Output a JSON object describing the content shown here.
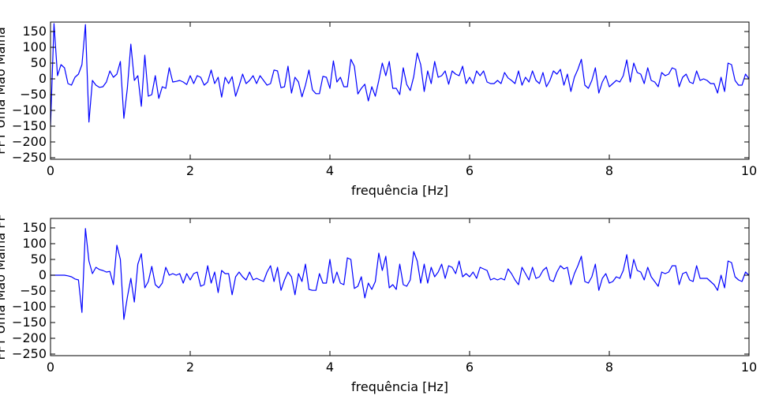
{
  "chart_data": [
    {
      "type": "line",
      "xlabel": "frequência [Hz]",
      "ylabel": "FFT Uma Mao Malha",
      "xlim": [
        0,
        10
      ],
      "ylim": [
        -250,
        180
      ],
      "xticks": [
        "0",
        "2",
        "4",
        "6",
        "8",
        "10"
      ],
      "yticks": [
        "150",
        "100",
        "50",
        "0",
        "−50",
        "−100",
        "−150",
        "−200",
        "−250"
      ],
      "grid": false,
      "color": "#0000ff",
      "series": [
        {
          "x": [
            0.0,
            0.05,
            0.1,
            0.15,
            0.2,
            0.25,
            0.3,
            0.35,
            0.4,
            0.45,
            0.5,
            0.55,
            0.6,
            0.65,
            0.7,
            0.75,
            0.8,
            0.85,
            0.9,
            0.95,
            1.0,
            1.05,
            1.1,
            1.15,
            1.2,
            1.25,
            1.3,
            1.35,
            1.4,
            1.45,
            1.5,
            1.55,
            1.6,
            1.65,
            1.7,
            1.75,
            1.8,
            1.85,
            1.9,
            1.95,
            2.0,
            2.05,
            2.1,
            2.15,
            2.2,
            2.25,
            2.3,
            2.35,
            2.4,
            2.45,
            2.5,
            2.55,
            2.6,
            2.65,
            2.7,
            2.75,
            2.8,
            2.85,
            2.9,
            2.95,
            3.0,
            3.05,
            3.1,
            3.15,
            3.2,
            3.25,
            3.3,
            3.35,
            3.4,
            3.45,
            3.5,
            3.55,
            3.6,
            3.65,
            3.7,
            3.75,
            3.8,
            3.85,
            3.9,
            3.95,
            4.0,
            4.05,
            4.1,
            4.15,
            4.2,
            4.25,
            4.3,
            4.35,
            4.4,
            4.45,
            4.5,
            4.55,
            4.6,
            4.65,
            4.7,
            4.75,
            4.8,
            4.85,
            4.9,
            4.95,
            5.0,
            5.05,
            5.1,
            5.15,
            5.2,
            5.25,
            5.3,
            5.35,
            5.4,
            5.45,
            5.5,
            5.55,
            5.6,
            5.65,
            5.7,
            5.75,
            5.8,
            5.85,
            5.9,
            5.95,
            6.0,
            6.05,
            6.1,
            6.15,
            6.2,
            6.25,
            6.3,
            6.35,
            6.4,
            6.45,
            6.5,
            6.55,
            6.6,
            6.65,
            6.7,
            6.75,
            6.8,
            6.85,
            6.9,
            6.95,
            7.0,
            7.05,
            7.1,
            7.15,
            7.2,
            7.25,
            7.3,
            7.35,
            7.4,
            7.45,
            7.5,
            7.55,
            7.6,
            7.65,
            7.7,
            7.75,
            7.8,
            7.85,
            7.9,
            7.95,
            8.0,
            8.05,
            8.1,
            8.15,
            8.2,
            8.25,
            8.3,
            8.35,
            8.4,
            8.45,
            8.5,
            8.55,
            8.6,
            8.65,
            8.7,
            8.75,
            8.8,
            8.85,
            8.9,
            8.95,
            9.0,
            9.05,
            9.1,
            9.15,
            9.2,
            9.25,
            9.3,
            9.35,
            9.4,
            9.45,
            9.5,
            9.55,
            9.6,
            9.65,
            9.7,
            9.75,
            9.8,
            9.85,
            9.9,
            9.95,
            10.0
          ],
          "y": [
            -150,
            175,
            10,
            45,
            35,
            -15,
            -20,
            5,
            15,
            45,
            172,
            -137,
            -5,
            -20,
            -27,
            -25,
            -10,
            25,
            5,
            15,
            55,
            -125,
            -30,
            110,
            -5,
            10,
            -87,
            75,
            -55,
            -50,
            10,
            -62,
            -25,
            -30,
            35,
            -10,
            -8,
            -5,
            -10,
            -18,
            10,
            -15,
            10,
            5,
            -20,
            -10,
            28,
            -15,
            5,
            -58,
            5,
            -15,
            7,
            -55,
            -22,
            15,
            -15,
            -5,
            10,
            -15,
            10,
            -5,
            -20,
            -15,
            28,
            25,
            -28,
            -25,
            40,
            -45,
            5,
            -10,
            -57,
            -20,
            28,
            -35,
            -47,
            -47,
            8,
            5,
            -30,
            57,
            -10,
            5,
            -25,
            -25,
            62,
            40,
            -48,
            -30,
            -17,
            -70,
            -25,
            -55,
            -5,
            50,
            10,
            55,
            -30,
            -30,
            -50,
            35,
            -18,
            -37,
            7,
            82,
            45,
            -40,
            25,
            -15,
            55,
            5,
            10,
            25,
            -17,
            25,
            15,
            10,
            40,
            -15,
            5,
            -15,
            25,
            10,
            25,
            -10,
            -15,
            -15,
            -5,
            -15,
            20,
            3,
            -5,
            -15,
            25,
            -20,
            5,
            -10,
            25,
            -5,
            -15,
            20,
            -25,
            -5,
            25,
            15,
            30,
            -20,
            15,
            -40,
            5,
            30,
            62,
            -20,
            -30,
            -5,
            35,
            -45,
            -10,
            10,
            -25,
            -15,
            -5,
            -10,
            10,
            60,
            -10,
            50,
            20,
            15,
            -15,
            35,
            -5,
            -10,
            -25,
            20,
            10,
            15,
            35,
            30,
            -25,
            5,
            15,
            -10,
            -15,
            25,
            -5,
            0,
            -5,
            -15,
            -15,
            -45,
            5,
            -40,
            50,
            45,
            -5,
            -20,
            -20,
            15,
            0
          ]
        }
      ]
    },
    {
      "type": "line",
      "xlabel": "frequência [Hz]",
      "ylabel": "FFT Uma Mao Malha FF",
      "xlim": [
        0,
        10
      ],
      "ylim": [
        -250,
        180
      ],
      "xticks": [
        "0",
        "2",
        "4",
        "6",
        "8",
        "10"
      ],
      "yticks": [
        "150",
        "100",
        "50",
        "0",
        "−50",
        "−100",
        "−150",
        "−200",
        "−250"
      ],
      "grid": false,
      "color": "#0000ff",
      "series": [
        {
          "x": [
            0.0,
            0.05,
            0.1,
            0.15,
            0.2,
            0.25,
            0.3,
            0.35,
            0.4,
            0.45,
            0.5,
            0.55,
            0.6,
            0.65,
            0.7,
            0.75,
            0.8,
            0.85,
            0.9,
            0.95,
            1.0,
            1.05,
            1.1,
            1.15,
            1.2,
            1.25,
            1.3,
            1.35,
            1.4,
            1.45,
            1.5,
            1.55,
            1.6,
            1.65,
            1.7,
            1.75,
            1.8,
            1.85,
            1.9,
            1.95,
            2.0,
            2.05,
            2.1,
            2.15,
            2.2,
            2.25,
            2.3,
            2.35,
            2.4,
            2.45,
            2.5,
            2.55,
            2.6,
            2.65,
            2.7,
            2.75,
            2.8,
            2.85,
            2.9,
            2.95,
            3.0,
            3.05,
            3.1,
            3.15,
            3.2,
            3.25,
            3.3,
            3.35,
            3.4,
            3.45,
            3.5,
            3.55,
            3.6,
            3.65,
            3.7,
            3.75,
            3.8,
            3.85,
            3.9,
            3.95,
            4.0,
            4.05,
            4.1,
            4.15,
            4.2,
            4.25,
            4.3,
            4.35,
            4.4,
            4.45,
            4.5,
            4.55,
            4.6,
            4.65,
            4.7,
            4.75,
            4.8,
            4.85,
            4.9,
            4.95,
            5.0,
            5.05,
            5.1,
            5.15,
            5.2,
            5.25,
            5.3,
            5.35,
            5.4,
            5.45,
            5.5,
            5.55,
            5.6,
            5.65,
            5.7,
            5.75,
            5.8,
            5.85,
            5.9,
            5.95,
            6.0,
            6.05,
            6.1,
            6.15,
            6.2,
            6.25,
            6.3,
            6.35,
            6.4,
            6.45,
            6.5,
            6.55,
            6.6,
            6.65,
            6.7,
            6.75,
            6.8,
            6.85,
            6.9,
            6.95,
            7.0,
            7.05,
            7.1,
            7.15,
            7.2,
            7.25,
            7.3,
            7.35,
            7.4,
            7.45,
            7.5,
            7.55,
            7.6,
            7.65,
            7.7,
            7.75,
            7.8,
            7.85,
            7.9,
            7.95,
            8.0,
            8.05,
            8.1,
            8.15,
            8.2,
            8.25,
            8.3,
            8.35,
            8.4,
            8.45,
            8.5,
            8.55,
            8.6,
            8.65,
            8.7,
            8.75,
            8.8,
            8.85,
            8.9,
            8.95,
            9.0,
            9.05,
            9.1,
            9.15,
            9.2,
            9.25,
            9.3,
            9.35,
            9.4,
            9.45,
            9.5,
            9.55,
            9.6,
            9.65,
            9.7,
            9.75,
            9.8,
            9.85,
            9.9,
            9.95,
            10.0
          ],
          "y": [
            0,
            0,
            0,
            0,
            0,
            -2,
            -5,
            -12,
            -15,
            -118,
            148,
            45,
            5,
            25,
            18,
            15,
            10,
            12,
            -30,
            95,
            50,
            -140,
            -70,
            -10,
            -85,
            35,
            68,
            -40,
            -20,
            28,
            -30,
            -40,
            -25,
            25,
            0,
            5,
            0,
            5,
            -25,
            5,
            -15,
            5,
            10,
            -35,
            -30,
            30,
            -25,
            10,
            -55,
            15,
            5,
            5,
            -62,
            -5,
            10,
            -5,
            -15,
            10,
            -15,
            -10,
            -15,
            -20,
            10,
            30,
            -20,
            25,
            -48,
            -15,
            10,
            -5,
            -62,
            5,
            -20,
            35,
            -45,
            -48,
            -48,
            5,
            -25,
            -25,
            50,
            -25,
            10,
            -25,
            -30,
            55,
            50,
            -42,
            -35,
            -5,
            -72,
            -25,
            -45,
            -20,
            70,
            15,
            60,
            -40,
            -30,
            -45,
            35,
            -30,
            -35,
            -15,
            75,
            45,
            -25,
            35,
            -25,
            25,
            -5,
            10,
            35,
            -10,
            30,
            25,
            5,
            45,
            -5,
            5,
            -5,
            10,
            -10,
            25,
            20,
            15,
            -15,
            -10,
            -15,
            -10,
            -15,
            20,
            5,
            -15,
            -30,
            25,
            5,
            -15,
            25,
            -10,
            -5,
            15,
            25,
            -15,
            -20,
            10,
            30,
            20,
            25,
            -30,
            5,
            30,
            60,
            -20,
            -25,
            -5,
            35,
            -48,
            -10,
            5,
            -25,
            -20,
            -5,
            -10,
            15,
            65,
            -10,
            50,
            15,
            10,
            -15,
            25,
            -5,
            -20,
            -35,
            10,
            5,
            10,
            30,
            30,
            -30,
            5,
            10,
            -15,
            -20,
            30,
            -10,
            -10,
            -10,
            -20,
            -30,
            -48,
            0,
            -40,
            45,
            40,
            -5,
            -15,
            -20,
            10,
            0
          ]
        }
      ]
    }
  ]
}
